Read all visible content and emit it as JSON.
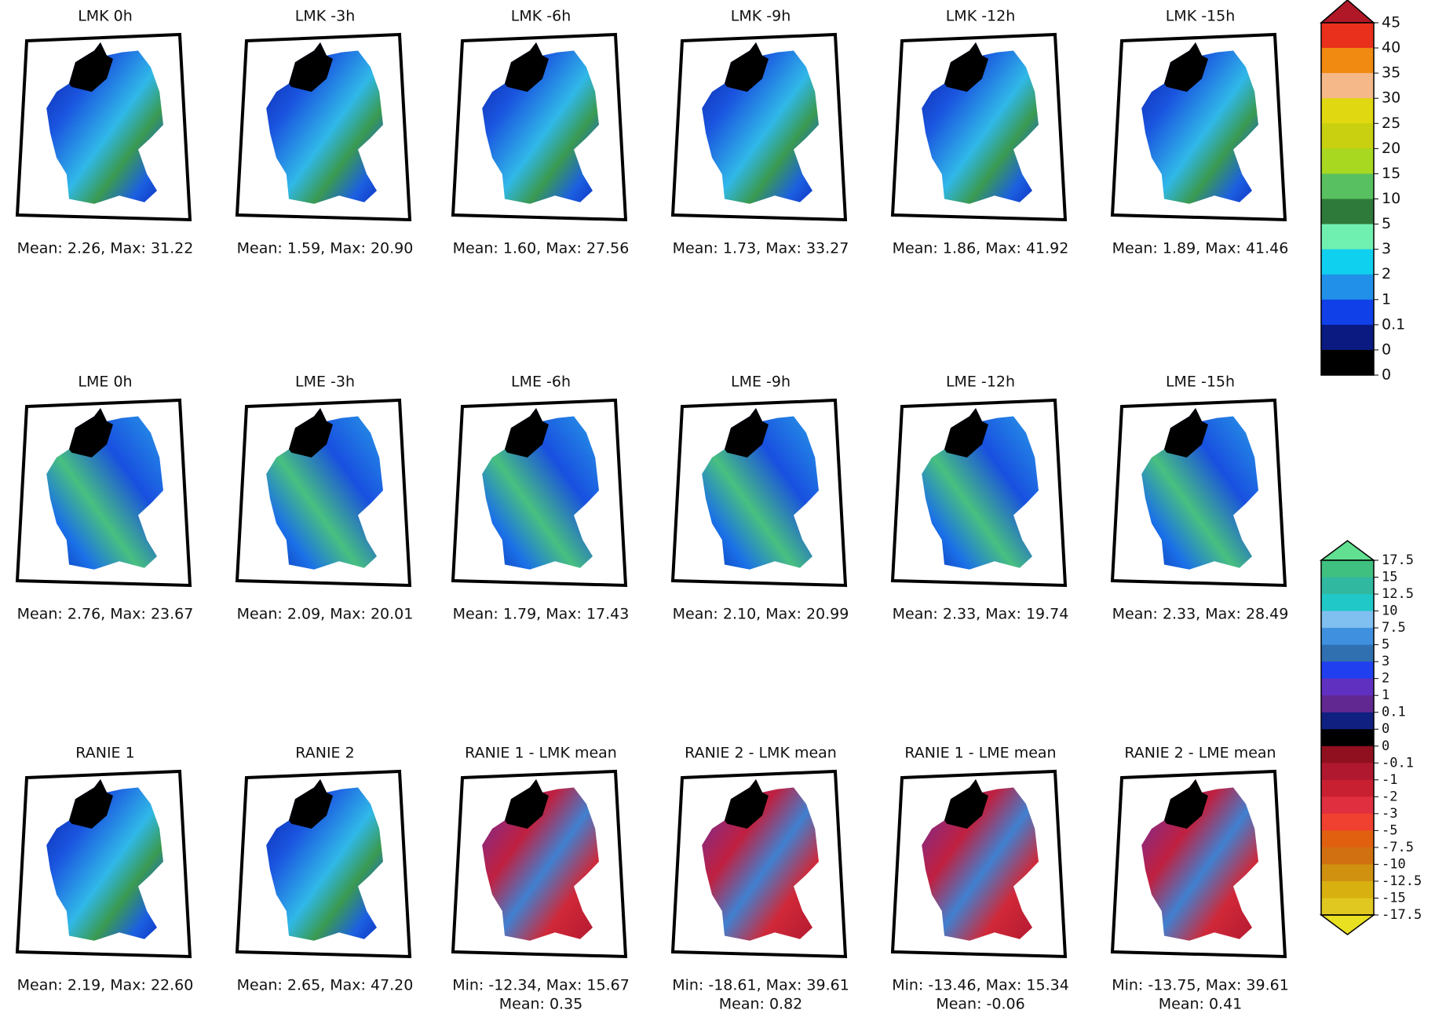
{
  "rows": [
    {
      "panels": [
        {
          "title": "LMK 0h",
          "stats": [
            "Mean: 2.26, Max: 31.22"
          ]
        },
        {
          "title": "LMK -3h",
          "stats": [
            "Mean: 1.59, Max: 20.90"
          ]
        },
        {
          "title": "LMK -6h",
          "stats": [
            "Mean: 1.60, Max: 27.56"
          ]
        },
        {
          "title": "LMK -9h",
          "stats": [
            "Mean: 1.73, Max: 33.27"
          ]
        },
        {
          "title": "LMK -12h",
          "stats": [
            "Mean: 1.86, Max: 41.92"
          ]
        },
        {
          "title": "LMK -15h",
          "stats": [
            "Mean: 1.89, Max: 41.46"
          ]
        }
      ]
    },
    {
      "panels": [
        {
          "title": "LME 0h",
          "stats": [
            "Mean: 2.76, Max: 23.67"
          ]
        },
        {
          "title": "LME -3h",
          "stats": [
            "Mean: 2.09, Max: 20.01"
          ]
        },
        {
          "title": "LME -6h",
          "stats": [
            "Mean: 1.79, Max: 17.43"
          ]
        },
        {
          "title": "LME -9h",
          "stats": [
            "Mean: 2.10, Max: 20.99"
          ]
        },
        {
          "title": "LME -12h",
          "stats": [
            "Mean: 2.33, Max: 19.74"
          ]
        },
        {
          "title": "LME -15h",
          "stats": [
            "Mean: 2.33, Max: 28.49"
          ]
        }
      ]
    },
    {
      "panels": [
        {
          "title": "RANIE 1",
          "stats": [
            "Mean: 2.19, Max: 22.60"
          ]
        },
        {
          "title": "RANIE 2",
          "stats": [
            "Mean: 2.65, Max: 47.20"
          ]
        },
        {
          "title": "RANIE 1 - LMK mean",
          "stats": [
            "Min: -12.34, Max: 15.67",
            "Mean: 0.35"
          ]
        },
        {
          "title": "RANIE 2 - LMK mean",
          "stats": [
            "Min: -18.61, Max: 39.61",
            "Mean: 0.82"
          ]
        },
        {
          "title": "RANIE 1 - LME mean",
          "stats": [
            "Min: -13.46, Max: 15.34",
            "Mean: -0.06"
          ]
        },
        {
          "title": "RANIE 2 - LME mean",
          "stats": [
            "Min: -13.75, Max: 39.61",
            "Mean: 0.41"
          ]
        }
      ]
    }
  ],
  "colorbars": [
    {
      "labels": [
        "45",
        "40",
        "35",
        "30",
        "25",
        "20",
        "15",
        "10",
        "5",
        "3",
        "2",
        "1",
        "0.1",
        "0",
        "0"
      ],
      "colors": [
        "#e8301c",
        "#f08a10",
        "#f5b888",
        "#e0d810",
        "#c8d010",
        "#a8d820",
        "#58c060",
        "#2e7a3a",
        "#70f0b0",
        "#10d0f0",
        "#2090e8",
        "#1040e8",
        "#0a1a80",
        "#000000"
      ],
      "over": "#b01828"
    },
    {
      "labels": [
        "17.5",
        "15",
        "12.5",
        "10",
        "7.5",
        "5",
        "3",
        "2",
        "1",
        "0.1",
        "0",
        "0",
        "-0.1",
        "-1",
        "-2",
        "-3",
        "-5",
        "-7.5",
        "-10",
        "-12.5",
        "-15",
        "-17.5"
      ],
      "colors": [
        "#40c080",
        "#30b8a0",
        "#20c8c8",
        "#80c0f0",
        "#4090e0",
        "#3070b0",
        "#2040f0",
        "#6030c0",
        "#602890",
        "#102080",
        "#000000",
        "#901020",
        "#b01830",
        "#c82030",
        "#e03040",
        "#f04030",
        "#e06010",
        "#d07010",
        "#d09010",
        "#d8b010",
        "#e0c820"
      ],
      "over": "#60e090",
      "under": "#e8e020"
    }
  ]
}
